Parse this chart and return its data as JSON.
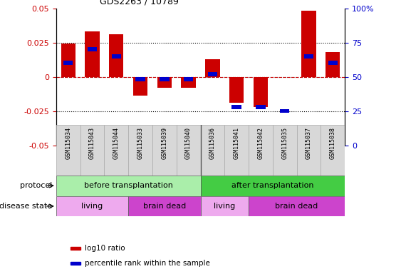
{
  "title": "GDS2263 / 10789",
  "samples": [
    "GSM115034",
    "GSM115043",
    "GSM115044",
    "GSM115033",
    "GSM115039",
    "GSM115040",
    "GSM115036",
    "GSM115041",
    "GSM115042",
    "GSM115035",
    "GSM115037",
    "GSM115038"
  ],
  "log10_ratio": [
    0.024,
    0.033,
    0.031,
    -0.014,
    -0.008,
    -0.008,
    0.013,
    -0.019,
    -0.022,
    0.0,
    0.048,
    0.018
  ],
  "percentile_rank_mapped": [
    60,
    70,
    65,
    48,
    48,
    48,
    52,
    28,
    28,
    25,
    65,
    60
  ],
  "bar_color": "#cc0000",
  "rank_color": "#0000cc",
  "ylim": [
    -0.05,
    0.05
  ],
  "yticks_left": [
    -0.05,
    -0.025,
    0,
    0.025,
    0.05
  ],
  "yticks_left_labels": [
    "-0.05",
    "-0.025",
    "0",
    "0.025",
    "0.05"
  ],
  "yticks_right_pct": [
    0,
    25,
    50,
    75,
    100
  ],
  "yticks_right_labels": [
    "0",
    "25",
    "50",
    "75",
    "100%"
  ],
  "protocol_groups": [
    {
      "label": "before transplantation",
      "start": 0,
      "end": 6,
      "color": "#aaeeaa"
    },
    {
      "label": "after transplantation",
      "start": 6,
      "end": 12,
      "color": "#44cc44"
    }
  ],
  "disease_groups": [
    {
      "label": "living",
      "start": 0,
      "end": 3,
      "color": "#eeaaee"
    },
    {
      "label": "brain dead",
      "start": 3,
      "end": 6,
      "color": "#cc44cc"
    },
    {
      "label": "living",
      "start": 6,
      "end": 8,
      "color": "#eeaaee"
    },
    {
      "label": "brain dead",
      "start": 8,
      "end": 12,
      "color": "#cc44cc"
    }
  ],
  "protocol_label": "protocol",
  "disease_label": "disease state",
  "legend_items": [
    {
      "label": "log10 ratio",
      "color": "#cc0000"
    },
    {
      "label": "percentile rank within the sample",
      "color": "#0000cc"
    }
  ],
  "bar_width": 0.6,
  "blue_bar_height": 0.003,
  "blue_bar_width": 0.4
}
